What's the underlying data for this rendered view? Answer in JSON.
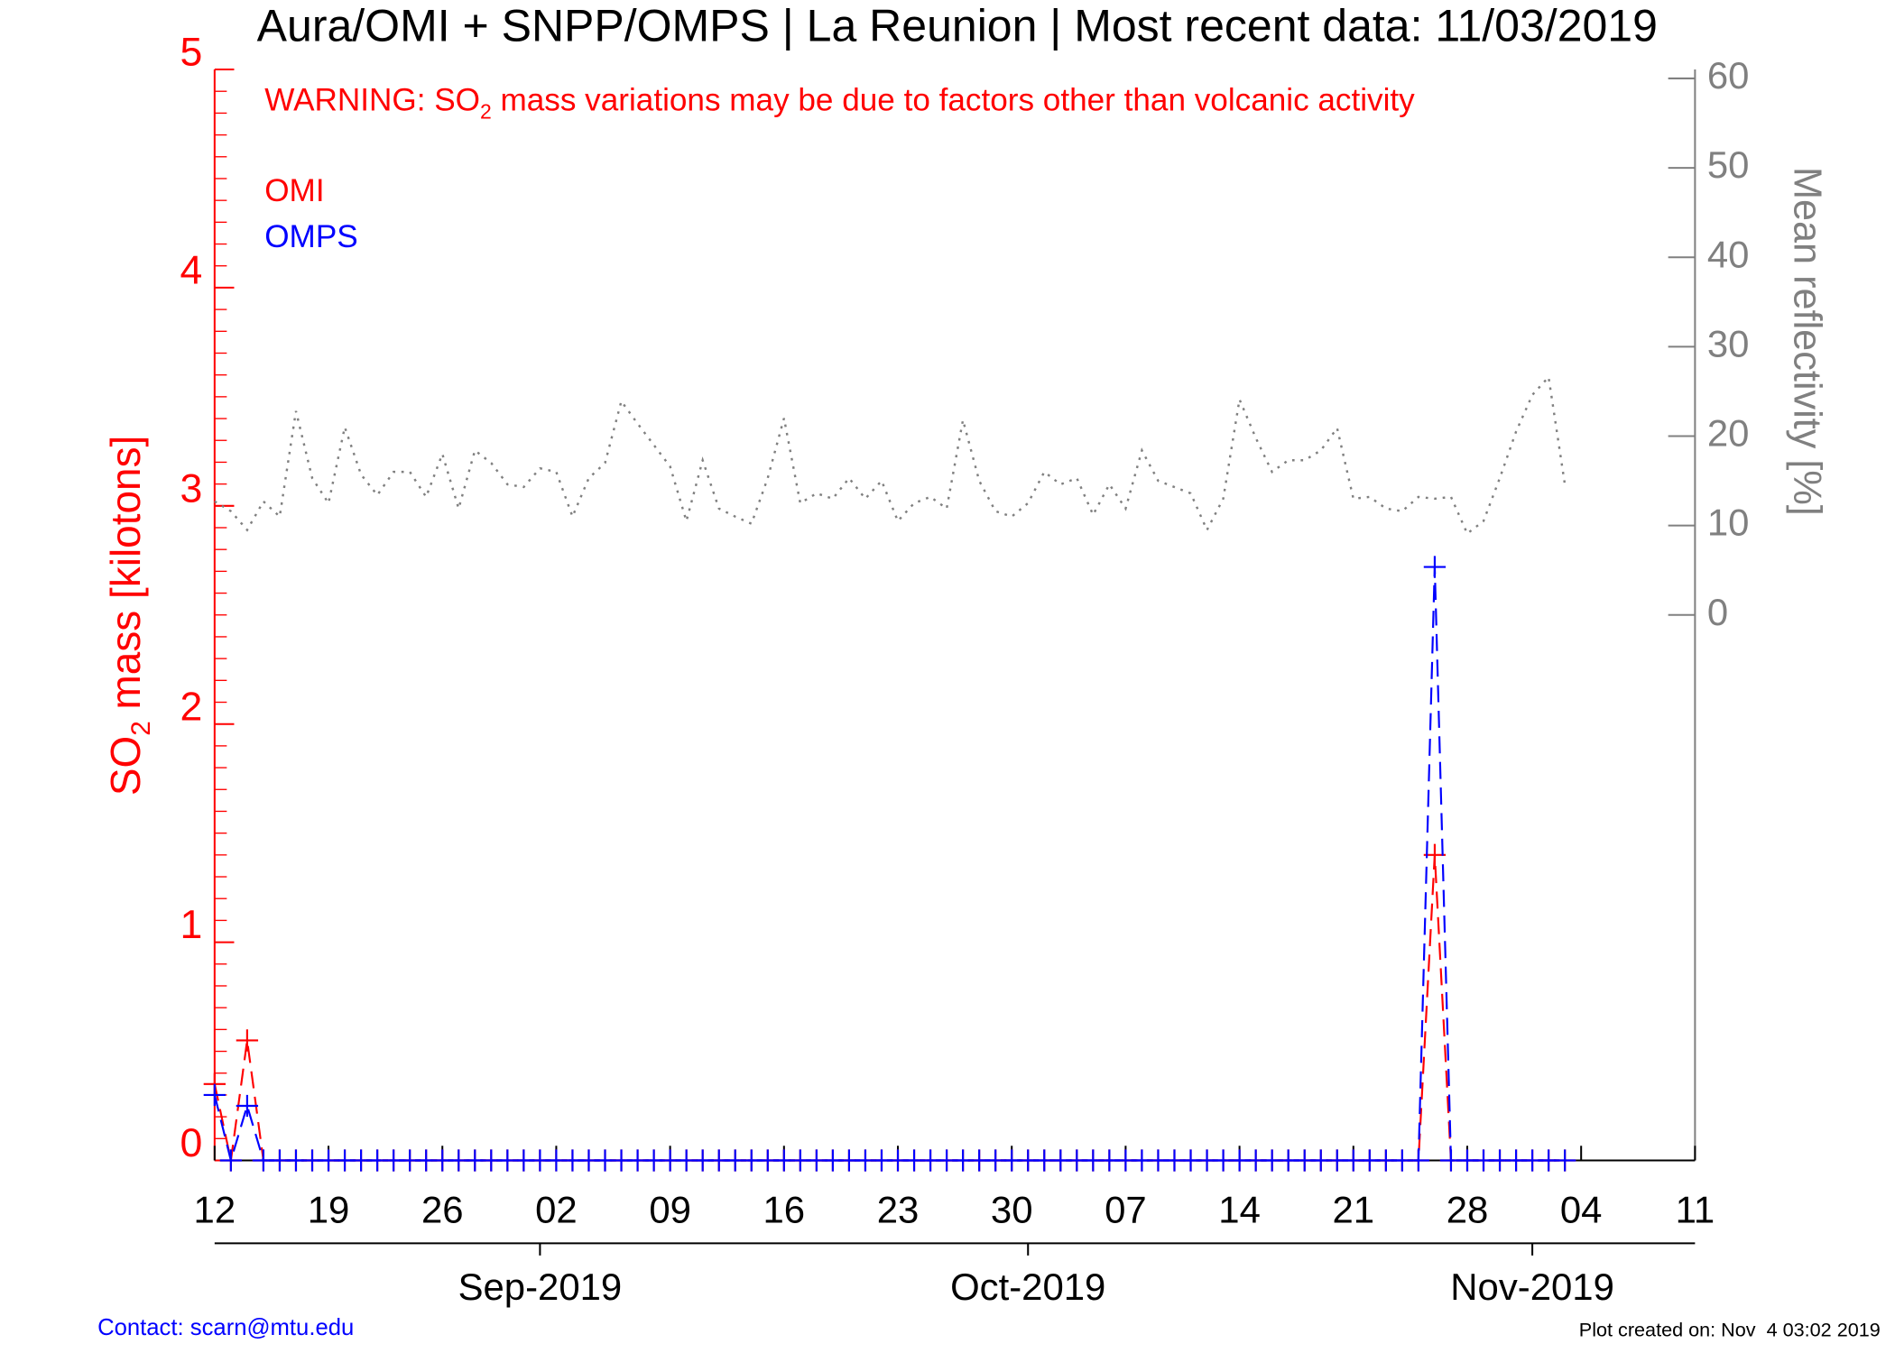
{
  "chart_data": {
    "type": "line",
    "title": "Aura/OMI + SNPP/OMPS | La Reunion | Most recent data: 11/03/2019",
    "annotation": [
      "WARNING: SO",
      "2",
      " mass variations may be due to factors other than volcanic activity"
    ],
    "y_label": [
      "SO",
      "2",
      " mass [kilotons]"
    ],
    "y2_label": "Mean reflectivity [%]",
    "legend": "upper left",
    "x": [
      "2019-08-12",
      "2019-08-13",
      "2019-08-14",
      "2019-08-15",
      "2019-08-16",
      "2019-08-17",
      "2019-08-18",
      "2019-08-19",
      "2019-08-20",
      "2019-08-21",
      "2019-08-22",
      "2019-08-23",
      "2019-08-24",
      "2019-08-25",
      "2019-08-26",
      "2019-08-27",
      "2019-08-28",
      "2019-08-29",
      "2019-08-30",
      "2019-08-31",
      "2019-09-01",
      "2019-09-02",
      "2019-09-03",
      "2019-09-04",
      "2019-09-05",
      "2019-09-06",
      "2019-09-07",
      "2019-09-08",
      "2019-09-09",
      "2019-09-10",
      "2019-09-11",
      "2019-09-12",
      "2019-09-13",
      "2019-09-14",
      "2019-09-15",
      "2019-09-16",
      "2019-09-17",
      "2019-09-18",
      "2019-09-19",
      "2019-09-20",
      "2019-09-21",
      "2019-09-22",
      "2019-09-23",
      "2019-09-24",
      "2019-09-25",
      "2019-09-26",
      "2019-09-27",
      "2019-09-28",
      "2019-09-29",
      "2019-09-30",
      "2019-10-01",
      "2019-10-02",
      "2019-10-03",
      "2019-10-04",
      "2019-10-05",
      "2019-10-06",
      "2019-10-07",
      "2019-10-08",
      "2019-10-09",
      "2019-10-10",
      "2019-10-11",
      "2019-10-12",
      "2019-10-13",
      "2019-10-14",
      "2019-10-15",
      "2019-10-16",
      "2019-10-17",
      "2019-10-18",
      "2019-10-19",
      "2019-10-20",
      "2019-10-21",
      "2019-10-22",
      "2019-10-23",
      "2019-10-24",
      "2019-10-25",
      "2019-10-26",
      "2019-10-27",
      "2019-10-28",
      "2019-10-29",
      "2019-10-30",
      "2019-10-31",
      "2019-11-01",
      "2019-11-02",
      "2019-11-03"
    ],
    "series": [
      {
        "name": "OMI",
        "color": "#ff0000",
        "style": "dashed",
        "marker": true,
        "values": [
          0.35,
          0,
          0.55,
          0,
          0,
          0,
          0,
          0,
          0,
          0,
          0,
          0,
          0,
          0,
          0,
          0,
          0,
          0,
          0,
          0,
          0,
          0,
          0,
          0,
          0,
          0,
          0,
          0,
          0,
          0,
          0,
          0,
          0,
          0,
          0,
          0,
          0,
          0,
          0,
          0,
          0,
          0,
          0,
          0,
          0,
          0,
          0,
          0,
          0,
          0,
          0,
          0,
          0,
          0,
          0,
          0,
          0,
          0,
          0,
          0,
          0,
          0,
          0,
          0,
          0,
          0,
          0,
          0,
          0,
          0,
          0,
          0,
          0,
          0,
          0,
          1.4,
          0,
          0,
          0,
          0,
          0,
          0,
          0,
          0
        ]
      },
      {
        "name": "OMPS",
        "color": "#0000ff",
        "style": "dashed",
        "marker": true,
        "values": [
          0.3,
          0,
          0.25,
          0,
          0,
          0,
          0,
          0,
          0,
          0,
          0,
          0,
          0,
          0,
          0,
          0,
          0,
          0,
          0,
          0,
          0,
          0,
          0,
          0,
          0,
          0,
          0,
          0,
          0,
          0,
          0,
          0,
          0,
          0,
          0,
          0,
          0,
          0,
          0,
          0,
          0,
          0,
          0,
          0,
          0,
          0,
          0,
          0,
          0,
          0,
          0,
          0,
          0,
          0,
          0,
          0,
          0,
          0,
          0,
          0,
          0,
          0,
          0,
          0,
          0,
          0,
          0,
          0,
          0,
          0,
          0,
          0,
          0,
          0,
          0,
          2.72,
          0,
          0,
          0,
          0,
          0,
          0,
          0,
          0
        ]
      },
      {
        "color": "#808080",
        "style": "dotted",
        "marker": false,
        "axis": "y2",
        "values": [
          12.7,
          11.6,
          9.5,
          12.7,
          11,
          22.8,
          15.3,
          12.5,
          21,
          15.7,
          13.4,
          16,
          16,
          13.2,
          18,
          11.9,
          18.4,
          17,
          14.6,
          14.3,
          16.4,
          16,
          11,
          15.3,
          17,
          23.9,
          21.4,
          19,
          16.6,
          10.5,
          17.3,
          11.9,
          11,
          10.2,
          15.3,
          22,
          12.5,
          13.6,
          13,
          15.3,
          13,
          15,
          10.5,
          12.5,
          13.2,
          11.9,
          21.8,
          15,
          11.6,
          11,
          12.5,
          16,
          14.6,
          15.3,
          11.2,
          14.6,
          11.9,
          18.4,
          15,
          14.3,
          13.6,
          9.5,
          13,
          24.1,
          19.8,
          16,
          17.3,
          17.3,
          18.4,
          20.9,
          13,
          13.2,
          11.9,
          11.6,
          13.2,
          13,
          13.2,
          9.1,
          10.5,
          15.3,
          20.5,
          24.6,
          26.6,
          14.6
        ]
      }
    ],
    "xlim": [
      "2019-08-12",
      "2019-11-11"
    ],
    "xticks": [
      {
        "value": "2019-08-12",
        "label": "12"
      },
      {
        "value": "2019-08-19",
        "label": "19"
      },
      {
        "value": "2019-08-26",
        "label": "26"
      },
      {
        "value": "2019-09-02",
        "label": "02"
      },
      {
        "value": "2019-09-09",
        "label": "09"
      },
      {
        "value": "2019-09-16",
        "label": "16"
      },
      {
        "value": "2019-09-23",
        "label": "23"
      },
      {
        "value": "2019-09-30",
        "label": "30"
      },
      {
        "value": "2019-10-07",
        "label": "07"
      },
      {
        "value": "2019-10-14",
        "label": "14"
      },
      {
        "value": "2019-10-21",
        "label": "21"
      },
      {
        "value": "2019-10-28",
        "label": "28"
      },
      {
        "value": "2019-11-04",
        "label": "04"
      },
      {
        "value": "2019-11-11",
        "label": "11"
      }
    ],
    "month_ticks": [
      {
        "value": "2019-09-01",
        "label": "Sep-2019"
      },
      {
        "value": "2019-10-01",
        "label": "Oct-2019"
      },
      {
        "value": "2019-11-01",
        "label": "Nov-2019"
      }
    ],
    "ylim": [
      0,
      5
    ],
    "yticks": [
      0,
      1,
      2,
      3,
      4,
      5
    ],
    "y2lim": [
      -61,
      61
    ],
    "y2ticks": [
      0,
      10,
      20,
      30,
      40,
      50,
      60
    ],
    "axis_color": "#ff0000",
    "y2_axis_color": "#808080"
  },
  "footer": {
    "contact": "Contact: scarn@mtu.edu",
    "created": "Plot created on: Nov  4 03:02 2019"
  }
}
